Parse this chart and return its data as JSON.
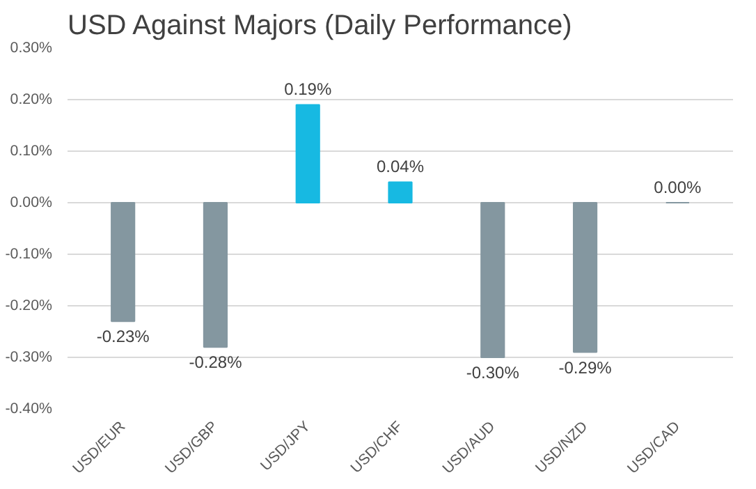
{
  "chart_data": {
    "type": "bar",
    "title": "USD Against Majors (Daily Performance)",
    "categories": [
      "USD/EUR",
      "USD/GBP",
      "USD/JPY",
      "USD/CHF",
      "USD/AUD",
      "USD/NZD",
      "USD/CAD"
    ],
    "values": [
      -0.23,
      -0.28,
      0.19,
      0.04,
      -0.3,
      -0.29,
      0.0
    ],
    "colors": [
      "#8497a0",
      "#8497a0",
      "#17b9e2",
      "#17b9e2",
      "#8497a0",
      "#8497a0",
      "#8497a0"
    ],
    "value_labels": [
      "-0.23%",
      "-0.28%",
      "0.19%",
      "0.04%",
      "-0.30%",
      "-0.29%",
      "0.00%"
    ],
    "ylim": [
      -0.4,
      0.3
    ],
    "yticks": [
      {
        "value": -0.4,
        "label": "-0.40%"
      },
      {
        "value": -0.3,
        "label": "-0.30%"
      },
      {
        "value": -0.2,
        "label": "-0.20%"
      },
      {
        "value": -0.1,
        "label": "-0.10%"
      },
      {
        "value": 0,
        "label": "0.00%"
      },
      {
        "value": 0.1,
        "label": "0.10%"
      },
      {
        "value": 0.2,
        "label": "0.20%"
      },
      {
        "value": 0.3,
        "label": "0.30%"
      }
    ],
    "grid": "y"
  }
}
